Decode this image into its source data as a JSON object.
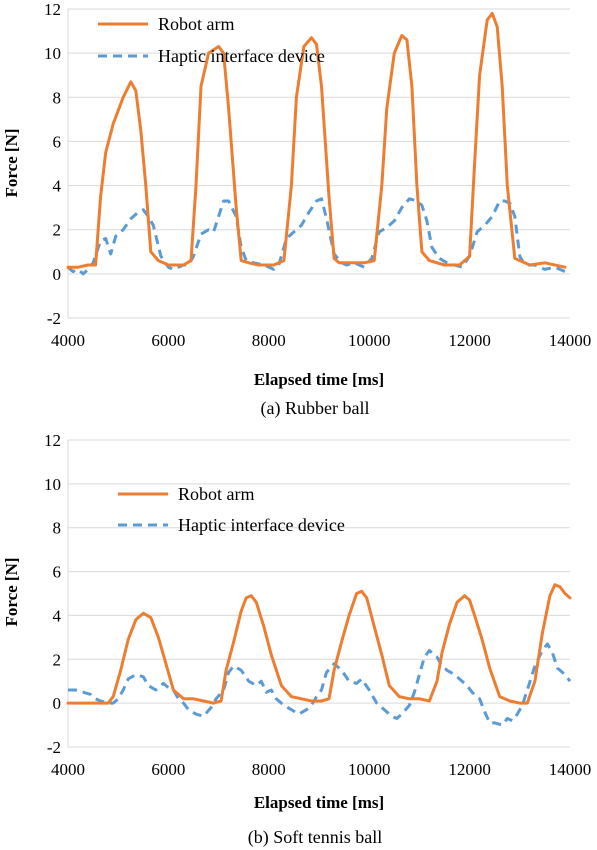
{
  "chart_data": [
    {
      "type": "line",
      "caption": "(a) Rubber ball",
      "xlabel": "Elapsed time [ms]",
      "ylabel": "Force [N]",
      "xlim": [
        4000,
        14000
      ],
      "ylim": [
        -2,
        12
      ],
      "xticks": [
        "4000",
        "6000",
        "8000",
        "10000",
        "12000",
        "14000"
      ],
      "yticks": [
        "-2",
        "0",
        "2",
        "4",
        "6",
        "8",
        "10",
        "12"
      ],
      "legend_position": "top-left",
      "colors": {
        "robot": "#ED7D31",
        "haptic": "#5B9BD5"
      },
      "series": [
        {
          "name": "Robot arm",
          "style": "solid",
          "x": [
            4000,
            4200,
            4400,
            4550,
            4650,
            4750,
            4900,
            5100,
            5250,
            5350,
            5450,
            5550,
            5650,
            5800,
            6000,
            6300,
            6450,
            6550,
            6650,
            6800,
            7000,
            7100,
            7200,
            7350,
            7450,
            7600,
            7800,
            8100,
            8300,
            8450,
            8550,
            8700,
            8850,
            8950,
            9050,
            9200,
            9300,
            9400,
            9600,
            9900,
            10100,
            10250,
            10350,
            10500,
            10650,
            10750,
            10850,
            10950,
            11050,
            11200,
            11500,
            11800,
            12000,
            12100,
            12200,
            12350,
            12450,
            12550,
            12650,
            12750,
            12900,
            13200,
            13500,
            13900
          ],
          "y": [
            0.3,
            0.3,
            0.4,
            0.4,
            3.5,
            5.5,
            6.8,
            8.0,
            8.7,
            8.3,
            6.5,
            4.0,
            1.0,
            0.6,
            0.4,
            0.4,
            0.6,
            4.0,
            8.5,
            10.0,
            10.3,
            10.0,
            7.5,
            3.0,
            0.6,
            0.5,
            0.4,
            0.4,
            0.6,
            4.0,
            8.0,
            10.3,
            10.7,
            10.4,
            8.5,
            3.5,
            0.7,
            0.5,
            0.5,
            0.5,
            0.6,
            4.0,
            7.5,
            10.0,
            10.8,
            10.6,
            8.5,
            4.0,
            1.0,
            0.6,
            0.4,
            0.4,
            0.8,
            5.0,
            9.0,
            11.5,
            11.8,
            11.2,
            8.5,
            4.0,
            0.7,
            0.4,
            0.5,
            0.3
          ]
        },
        {
          "name": "Haptic interface device",
          "style": "dashed",
          "x": [
            4000,
            4100,
            4200,
            4300,
            4400,
            4500,
            4650,
            4750,
            4850,
            4950,
            5100,
            5250,
            5400,
            5500,
            5600,
            5700,
            5850,
            6000,
            6100,
            6200,
            6300,
            6400,
            6500,
            6650,
            6800,
            6900,
            7000,
            7100,
            7200,
            7350,
            7450,
            7550,
            7700,
            7900,
            8100,
            8200,
            8350,
            8500,
            8650,
            8800,
            8950,
            9050,
            9150,
            9300,
            9450,
            9550,
            9700,
            9900,
            10050,
            10200,
            10350,
            10500,
            10650,
            10800,
            10950,
            11050,
            11150,
            11250,
            11400,
            11550,
            11700,
            11850,
            12000,
            12150,
            12300,
            12450,
            12600,
            12700,
            12800,
            12900,
            13000,
            13100,
            13300,
            13500,
            13700,
            13900
          ],
          "y": [
            0.3,
            0.1,
            0.2,
            0.0,
            0.2,
            0.5,
            1.5,
            1.6,
            0.9,
            1.7,
            2.0,
            2.5,
            2.8,
            2.9,
            2.6,
            2.2,
            0.8,
            0.3,
            0.2,
            0.3,
            0.4,
            0.4,
            0.8,
            1.8,
            2.0,
            1.9,
            2.6,
            3.3,
            3.3,
            2.6,
            1.2,
            0.6,
            0.5,
            0.4,
            0.2,
            0.4,
            1.6,
            1.9,
            2.2,
            2.8,
            3.3,
            3.4,
            2.5,
            0.9,
            0.5,
            0.4,
            0.5,
            0.3,
            0.7,
            1.9,
            2.1,
            2.4,
            3.0,
            3.4,
            3.3,
            3.1,
            2.4,
            1.2,
            0.7,
            0.5,
            0.4,
            0.3,
            0.8,
            1.9,
            2.2,
            2.6,
            3.3,
            3.3,
            3.2,
            2.6,
            0.8,
            0.4,
            0.4,
            0.2,
            0.3,
            0.1
          ]
        }
      ]
    },
    {
      "type": "line",
      "caption": "(b) Soft tennis ball",
      "xlabel": "Elapsed time [ms]",
      "ylabel": "Force [N]",
      "xlim": [
        4000,
        14000
      ],
      "ylim": [
        -2,
        12
      ],
      "xticks": [
        "4000",
        "6000",
        "8000",
        "10000",
        "12000",
        "14000"
      ],
      "yticks": [
        "-2",
        "0",
        "2",
        "4",
        "6",
        "8",
        "10",
        "12"
      ],
      "legend_position": "upper-center",
      "colors": {
        "robot": "#ED7D31",
        "haptic": "#5B9BD5"
      },
      "series": [
        {
          "name": "Robot arm",
          "style": "solid",
          "x": [
            4000,
            4200,
            4400,
            4600,
            4800,
            4900,
            5050,
            5200,
            5350,
            5500,
            5650,
            5800,
            5950,
            6100,
            6300,
            6500,
            6700,
            6900,
            7050,
            7150,
            7300,
            7450,
            7550,
            7650,
            7750,
            7900,
            8050,
            8250,
            8450,
            8650,
            8850,
            9050,
            9200,
            9300,
            9450,
            9600,
            9750,
            9850,
            9950,
            10100,
            10250,
            10400,
            10600,
            10800,
            11000,
            11200,
            11350,
            11450,
            11600,
            11750,
            11900,
            12000,
            12100,
            12250,
            12400,
            12600,
            12800,
            13000,
            13150,
            13300,
            13450,
            13600,
            13700,
            13800,
            13900,
            14000
          ],
          "y": [
            0.0,
            0.0,
            0.0,
            0.0,
            0.0,
            0.3,
            1.5,
            2.9,
            3.8,
            4.1,
            3.9,
            3.0,
            1.8,
            0.6,
            0.2,
            0.2,
            0.1,
            0.0,
            0.1,
            1.5,
            2.8,
            4.2,
            4.8,
            4.9,
            4.6,
            3.5,
            2.2,
            0.8,
            0.3,
            0.2,
            0.1,
            0.1,
            0.2,
            1.5,
            2.8,
            4.0,
            5.0,
            5.1,
            4.8,
            3.5,
            2.2,
            0.8,
            0.3,
            0.2,
            0.2,
            0.1,
            1.0,
            2.3,
            3.6,
            4.6,
            4.9,
            4.7,
            4.0,
            2.9,
            1.6,
            0.3,
            0.1,
            0.0,
            0.0,
            1.0,
            3.2,
            4.9,
            5.4,
            5.3,
            5.0,
            4.8
          ]
        },
        {
          "name": "Haptic interface device",
          "style": "dashed",
          "x": [
            4000,
            4150,
            4300,
            4450,
            4550,
            4650,
            4800,
            4900,
            5000,
            5100,
            5200,
            5350,
            5500,
            5600,
            5750,
            5900,
            6000,
            6100,
            6200,
            6300,
            6400,
            6550,
            6700,
            6850,
            6950,
            7100,
            7200,
            7300,
            7450,
            7600,
            7750,
            7850,
            7950,
            8050,
            8150,
            8300,
            8450,
            8600,
            8750,
            8850,
            8950,
            9050,
            9150,
            9300,
            9450,
            9600,
            9750,
            9850,
            10000,
            10150,
            10300,
            10450,
            10550,
            10650,
            10800,
            10900,
            11000,
            11100,
            11200,
            11350,
            11450,
            11550,
            11700,
            11850,
            11950,
            12050,
            12200,
            12300,
            12400,
            12500,
            12650,
            12750,
            12850,
            12950,
            13050,
            13150,
            13300,
            13450,
            13550,
            13650,
            13750,
            13900,
            14000
          ],
          "y": [
            0.6,
            0.6,
            0.5,
            0.4,
            0.2,
            0.1,
            0.0,
            0.0,
            0.2,
            0.6,
            1.1,
            1.3,
            1.2,
            0.8,
            0.6,
            0.9,
            0.7,
            0.6,
            0.2,
            0.0,
            -0.3,
            -0.5,
            -0.6,
            -0.2,
            0.2,
            0.6,
            1.4,
            1.7,
            1.5,
            1.0,
            0.8,
            1.0,
            0.5,
            0.6,
            0.2,
            -0.1,
            -0.3,
            -0.5,
            -0.3,
            -0.1,
            0.3,
            0.6,
            1.4,
            1.8,
            1.5,
            1.0,
            0.9,
            1.1,
            0.6,
            0.0,
            -0.3,
            -0.6,
            -0.7,
            -0.5,
            -0.1,
            0.5,
            1.3,
            2.1,
            2.4,
            2.1,
            1.7,
            1.5,
            1.3,
            1.0,
            0.8,
            0.5,
            0.2,
            -0.4,
            -0.9,
            -0.9,
            -1.0,
            -0.7,
            -0.8,
            -0.5,
            -0.1,
            0.6,
            1.7,
            2.4,
            2.7,
            2.3,
            1.6,
            1.3,
            1.0
          ]
        }
      ]
    }
  ]
}
